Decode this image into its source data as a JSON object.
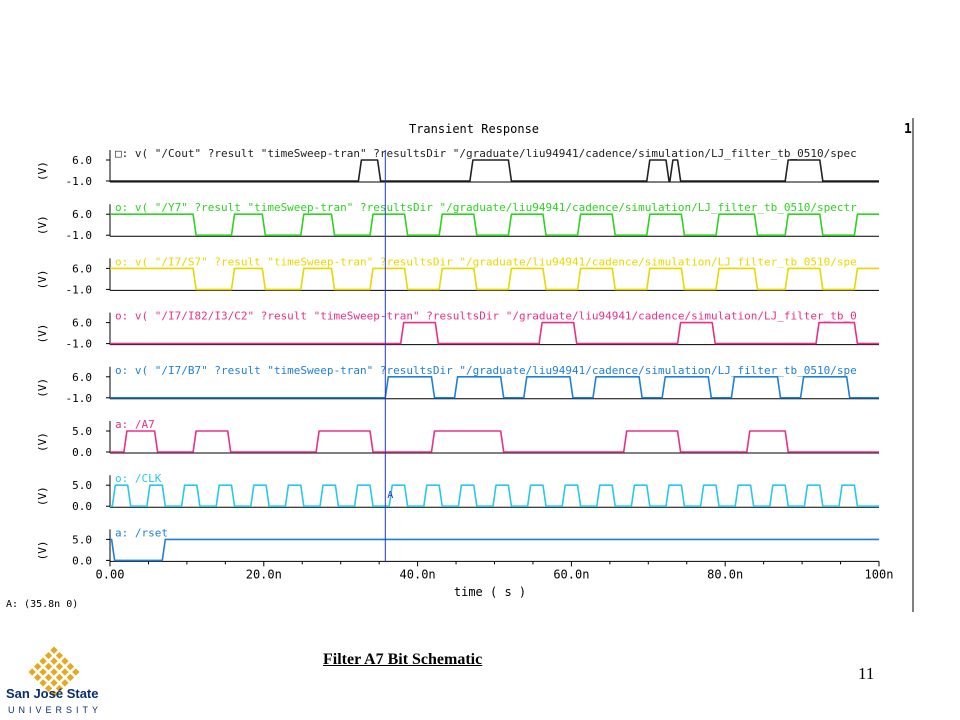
{
  "chart_data": {
    "type": "line",
    "title": "Transient Response",
    "corner_marker": "1",
    "xlabel": "time ( s )",
    "x_tick_labels": [
      "0.00",
      "20.0n",
      "40.0n",
      "60.0n",
      "80.0n",
      "100n"
    ],
    "x_range_ns": [
      0,
      100
    ],
    "cursor": {
      "x_ns": 35.8,
      "label": "A",
      "readout": "A: (35.8n 0)"
    },
    "unit_label": "(V)",
    "series": [
      {
        "name": "v( \"/Cout\" ?result \"timeSweep-tran\" ?resultsDir \"/graduate/liu94941/cadence/simulation/LJ_filter_tb_0510/spec",
        "prefix": "□: ",
        "color": "#222222",
        "ticks": [
          "6.0",
          "-1.0"
        ],
        "ylim": [
          -1,
          6
        ],
        "high_intervals_ns": [
          [
            32.5,
            35
          ],
          [
            47,
            52
          ],
          [
            70,
            72.5
          ],
          [
            73,
            74
          ],
          [
            88,
            92.5
          ]
        ]
      },
      {
        "name": "v( \"/Y7\" ?result \"timeSweep-tran\" ?resultsDir \"/graduate/liu94941/cadence/simulation/LJ_filter_tb_0510/spectr",
        "prefix": "o: ",
        "color": "#2ed320",
        "ticks": [
          "6.0",
          "-1.0"
        ],
        "ylim": [
          -1,
          6
        ],
        "high_intervals_ns": [
          [
            0,
            11
          ],
          [
            16,
            20
          ],
          [
            25,
            29
          ],
          [
            34,
            38.5
          ],
          [
            43,
            47.5
          ],
          [
            52,
            56.5
          ],
          [
            61,
            65.5
          ],
          [
            70,
            74.5
          ],
          [
            79,
            84
          ],
          [
            88,
            92.5
          ],
          [
            97,
            100
          ]
        ]
      },
      {
        "name": "v( \"/I7/S7\" ?result \"timeSweep-tran\" ?resultsDir \"/graduate/liu94941/cadence/simulation/LJ_filter_tb_0510/spe",
        "prefix": "o: ",
        "color": "#e8d800",
        "ticks": [
          "6.0",
          "-1.0"
        ],
        "ylim": [
          -1,
          6
        ],
        "high_intervals_ns": [
          [
            0,
            11
          ],
          [
            16,
            20
          ],
          [
            25,
            29
          ],
          [
            34,
            38.5
          ],
          [
            43,
            47.5
          ],
          [
            52,
            56.5
          ],
          [
            61,
            65.5
          ],
          [
            70,
            74.5
          ],
          [
            79,
            84
          ],
          [
            88,
            92.5
          ],
          [
            97,
            100
          ]
        ]
      },
      {
        "name": "v( \"/I7/I82/I3/C2\" ?result \"timeSweep-tran\" ?resultsDir \"/graduate/liu94941/cadence/simulation/LJ_filter_tb_0",
        "prefix": "o: ",
        "color": "#e8308a",
        "ticks": [
          "6.0",
          "-1.0"
        ],
        "ylim": [
          -1,
          6
        ],
        "high_intervals_ns": [
          [
            38,
            42.5
          ],
          [
            56,
            60.5
          ],
          [
            74,
            78.5
          ],
          [
            92,
            97
          ]
        ]
      },
      {
        "name": "v( \"/I7/B7\" ?result \"timeSweep-tran\" ?resultsDir \"/graduate/liu94941/cadence/simulation/LJ_filter_tb_0510/spe",
        "prefix": "o: ",
        "color": "#1e7fd8",
        "ticks": [
          "6.0",
          "-1.0"
        ],
        "ylim": [
          -1,
          6
        ],
        "high_intervals_ns": [
          [
            36,
            42
          ],
          [
            45,
            51
          ],
          [
            54,
            60
          ],
          [
            63,
            69
          ],
          [
            72,
            78
          ],
          [
            81,
            87
          ],
          [
            90,
            96
          ]
        ]
      },
      {
        "name": "/A7",
        "prefix": "a: ",
        "color": "#e8308a",
        "ticks": [
          "5.0",
          "0.0"
        ],
        "ylim": [
          0,
          5
        ],
        "high_intervals_ns": [
          [
            2,
            6
          ],
          [
            11,
            15.5
          ],
          [
            27,
            34
          ],
          [
            42,
            51
          ],
          [
            67,
            74
          ],
          [
            83,
            88
          ]
        ]
      },
      {
        "name": "/CLK",
        "prefix": "o: ",
        "color": "#28c8ee",
        "ticks": [
          "5.0",
          "0.0"
        ],
        "ylim": [
          0,
          5
        ],
        "high_intervals_ns": [
          [
            0.5,
            2.5
          ],
          [
            5,
            7
          ],
          [
            9.5,
            11.5
          ],
          [
            14,
            16
          ],
          [
            18.5,
            20.5
          ],
          [
            23,
            25
          ],
          [
            27.5,
            29.5
          ],
          [
            32,
            34
          ],
          [
            36.5,
            38.5
          ],
          [
            41,
            43
          ],
          [
            45.5,
            47.5
          ],
          [
            50,
            52
          ],
          [
            54.5,
            56.5
          ],
          [
            59,
            61
          ],
          [
            63.5,
            65.5
          ],
          [
            68,
            70
          ],
          [
            72.5,
            74.5
          ],
          [
            77,
            79
          ],
          [
            81.5,
            83.5
          ],
          [
            86,
            88
          ],
          [
            90.5,
            92.5
          ],
          [
            95,
            97
          ]
        ]
      },
      {
        "name": "/rset",
        "prefix": "a: ",
        "color": "#1e7fd8",
        "ticks": [
          "5.0",
          "0.0"
        ],
        "ylim": [
          0,
          5
        ],
        "high_intervals_ns": [
          [
            0,
            0.4
          ],
          [
            7,
            100
          ]
        ]
      }
    ]
  },
  "caption": "Filter A7 Bit Schematic",
  "page_number": "11",
  "logo": {
    "name": "San José State",
    "sub": "UNIVERSITY",
    "gold": "#e5a823",
    "navy": "#0a2f6e"
  }
}
